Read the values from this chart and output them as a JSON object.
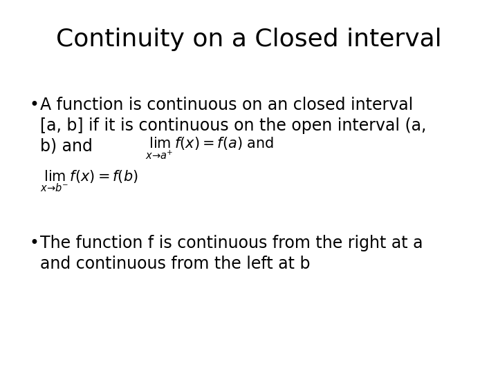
{
  "title": "Continuity on a Closed interval",
  "title_fontsize": 26,
  "background_color": "#ffffff",
  "text_color": "#000000",
  "bullet1_line1": "A function is continuous on an closed interval",
  "bullet1_line2": "[a, b] if it is continuous on the open interval (a,",
  "bullet1_line3": "b) and",
  "formula1": "$\\lim_{x \\to a^{+}} f(x) = f(a)$",
  "formula1_suffix": " and",
  "formula2": "$\\lim_{x \\to b^{-}} f(x) = f(b)$",
  "bullet2_line1": "The function f is continuous from the right at a",
  "bullet2_line2": "and continuous from the left at b",
  "bullet_fontsize": 17,
  "formula_fontsize": 15
}
